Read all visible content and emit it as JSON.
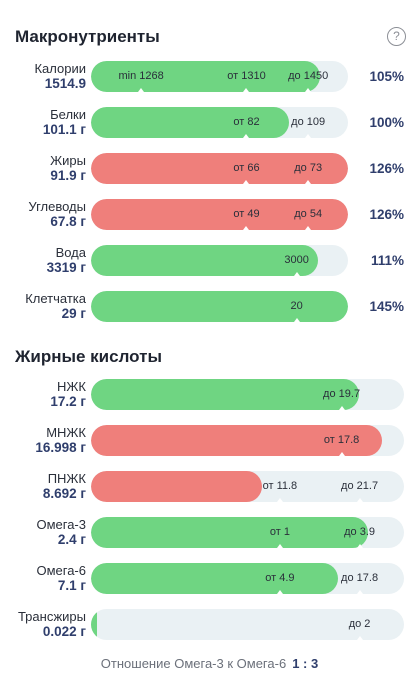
{
  "macro": {
    "title": "Макронутриенты",
    "help_icon": "?",
    "rows": [
      {
        "name": "Калории",
        "value": "1514.9",
        "percent": "105%",
        "fill": 0.89,
        "color": "green",
        "markers": [
          {
            "text": "min 1268",
            "pos": 0.195,
            "tick": true
          },
          {
            "text": "от 1310",
            "pos": 0.605,
            "tick": true
          },
          {
            "text": "до 1450",
            "pos": 0.845,
            "tick": true
          }
        ]
      },
      {
        "name": "Белки",
        "value": "101.1 г",
        "percent": "100%",
        "fill": 0.77,
        "color": "green",
        "markers": [
          {
            "text": "от 82",
            "pos": 0.605,
            "tick": true
          },
          {
            "text": "до 109",
            "pos": 0.845,
            "tick": true
          }
        ]
      },
      {
        "name": "Жиры",
        "value": "91.9 г",
        "percent": "126%",
        "fill": 1.0,
        "color": "red",
        "markers": [
          {
            "text": "от 66",
            "pos": 0.605,
            "tick": true
          },
          {
            "text": "до 73",
            "pos": 0.845,
            "tick": true
          }
        ]
      },
      {
        "name": "Углеводы",
        "value": "67.8 г",
        "percent": "126%",
        "fill": 1.0,
        "color": "red",
        "markers": [
          {
            "text": "от 49",
            "pos": 0.605,
            "tick": true
          },
          {
            "text": "до 54",
            "pos": 0.845,
            "tick": true
          }
        ]
      },
      {
        "name": "Вода",
        "value": "3319 г",
        "percent": "111%",
        "fill": 0.885,
        "color": "green",
        "markers": [
          {
            "text": "3000",
            "pos": 0.8,
            "tick": true
          }
        ]
      },
      {
        "name": "Клетчатка",
        "value": "29 г",
        "percent": "145%",
        "fill": 1.0,
        "color": "green",
        "markers": [
          {
            "text": "20",
            "pos": 0.8,
            "tick": true
          }
        ]
      }
    ]
  },
  "fatty": {
    "title": "Жирные кислоты",
    "rows": [
      {
        "name": "НЖК",
        "value": "17.2 г",
        "fill": 0.855,
        "color": "green",
        "markers": [
          {
            "text": "до 19.7",
            "pos": 0.975,
            "tick": true
          }
        ]
      },
      {
        "name": "МНЖК",
        "value": "16.998 г",
        "fill": 0.93,
        "color": "red",
        "markers": [
          {
            "text": "от 17.8",
            "pos": 0.975,
            "tick": true
          }
        ]
      },
      {
        "name": "ПНЖК",
        "value": "8.692 г",
        "fill": 0.545,
        "color": "red",
        "markers": [
          {
            "text": "от 11.8",
            "pos": 0.735,
            "tick": true
          },
          {
            "text": "до 21.7",
            "pos": 1.045,
            "tick": true
          }
        ]
      },
      {
        "name": "Омега-3",
        "value": "2.4 г",
        "fill": 0.885,
        "color": "green",
        "markers": [
          {
            "text": "от 1",
            "pos": 0.735,
            "tick": true
          },
          {
            "text": "до 3.9",
            "pos": 1.045,
            "tick": true
          }
        ]
      },
      {
        "name": "Омега-6",
        "value": "7.1 г",
        "fill": 0.79,
        "color": "green",
        "markers": [
          {
            "text": "от 4.9",
            "pos": 0.735,
            "tick": true
          },
          {
            "text": "до 17.8",
            "pos": 1.045,
            "tick": true
          }
        ]
      },
      {
        "name": "Трансжиры",
        "value": "0.022 г",
        "fill": 0.02,
        "color": "green",
        "markers": [
          {
            "text": "до 2",
            "pos": 1.045,
            "tick": true
          }
        ]
      }
    ]
  },
  "footer": {
    "label": "Отношение Омега-3 к Омега-6",
    "ratio": "1 : 3"
  },
  "colors": {
    "green": "#6fd582",
    "red": "#ef7f7b",
    "track": "#eaf1f4",
    "accent": "#2f3e6c"
  }
}
